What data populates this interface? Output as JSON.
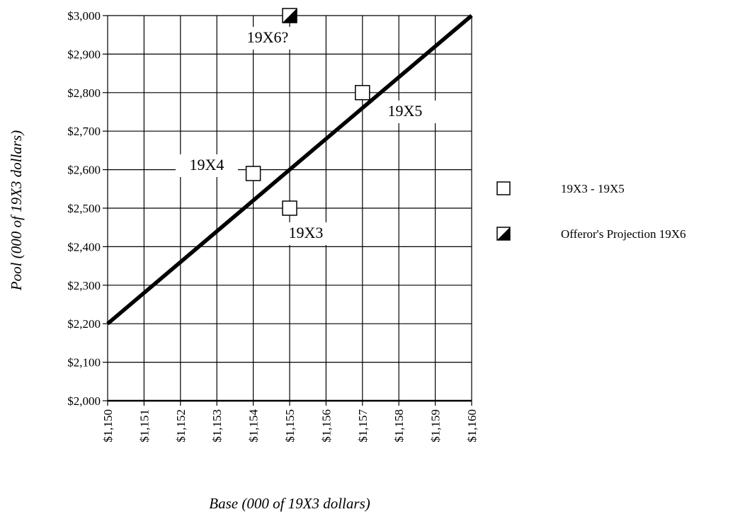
{
  "chart_data": {
    "type": "scatter",
    "xlabel": "Base (000 of 19X3 dollars)",
    "ylabel": "Pool (000 of 19X3 dollars)",
    "x_ticks": [
      "$1,150",
      "$1,151",
      "$1,152",
      "$1,153",
      "$1,154",
      "$1,155",
      "$1,156",
      "$1,157",
      "$1,158",
      "$1,159",
      "$1,160"
    ],
    "y_ticks": [
      "$2,000",
      "$2,100",
      "$2,200",
      "$2,300",
      "$2,400",
      "$2,500",
      "$2,600",
      "$2,700",
      "$2,800",
      "$2,900",
      "$3,000"
    ],
    "xlim": [
      1150,
      1160
    ],
    "ylim": [
      2000,
      3000
    ],
    "grid": true,
    "legend_position": "right",
    "series": [
      {
        "name": "19X3 - 19X5",
        "marker": "open-square",
        "points": [
          {
            "x": 1155,
            "y": 2500,
            "label": "19X3"
          },
          {
            "x": 1154,
            "y": 2590,
            "label": "19X4"
          },
          {
            "x": 1157,
            "y": 2800,
            "label": "19X5"
          }
        ]
      },
      {
        "name": "Offeror's Projection 19X6",
        "marker": "half-filled-square",
        "points": [
          {
            "x": 1155,
            "y": 3000,
            "label": "19X6?"
          }
        ]
      }
    ],
    "trend_line": {
      "x": [
        1150,
        1160
      ],
      "y": [
        2200,
        3000
      ]
    },
    "colors": {
      "line": "#000000",
      "grid": "#000000",
      "marker_fill": "#ffffff",
      "marker_dark": "#000000"
    }
  }
}
